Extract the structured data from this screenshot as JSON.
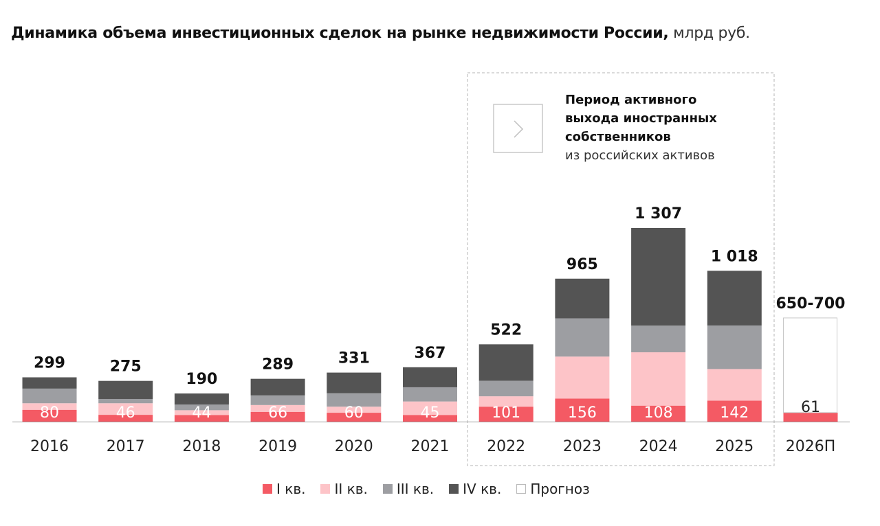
{
  "title": {
    "main": "Динамика объема инвестиционных сделок на рынке недвижимости России,",
    "unit": "млрд руб."
  },
  "annotation": {
    "line1": "Период активного",
    "line2": "выхода иностранных",
    "line3": "собственников",
    "line4": "из российских активов",
    "icon": "chevron-right-icon"
  },
  "colors": {
    "q1": "#f45a64",
    "q2": "#fdc4c8",
    "q3": "#9d9ea2",
    "q4": "#545454",
    "forecast": "#ffffff"
  },
  "chart_data": {
    "type": "bar",
    "stacked": true,
    "title": "Динамика объема инвестиционных сделок на рынке недвижимости России, млрд руб.",
    "categories": [
      "2016",
      "2017",
      "2018",
      "2019",
      "2020",
      "2021",
      "2022",
      "2023",
      "2024",
      "2025",
      "2026П"
    ],
    "series": [
      {
        "name": "I кв.",
        "values": [
          80,
          46,
          44,
          66,
          60,
          45,
          101,
          156,
          108,
          142,
          61
        ]
      },
      {
        "name": "II кв.",
        "values": [
          44,
          78,
          33,
          46,
          41,
          91,
          70,
          283,
          360,
          213,
          0
        ]
      },
      {
        "name": "III кв.",
        "values": [
          99,
          29,
          38,
          65,
          91,
          96,
          105,
          258,
          180,
          294,
          0
        ]
      },
      {
        "name": "IV кв.",
        "values": [
          76,
          122,
          75,
          112,
          139,
          135,
          246,
          268,
          659,
          369,
          0
        ]
      },
      {
        "name": "Прогноз",
        "values": [
          0,
          0,
          0,
          0,
          0,
          0,
          0,
          0,
          0,
          0,
          639
        ]
      }
    ],
    "totals": [
      "299",
      "275",
      "190",
      "289",
      "331",
      "367",
      "522",
      "965",
      "1 307",
      "1 018",
      "650-700"
    ],
    "q1_labels": [
      "80",
      "46",
      "44",
      "66",
      "60",
      "45",
      "101",
      "156",
      "108",
      "142",
      "61"
    ],
    "legend": [
      "I кв.",
      "II кв.",
      "III кв.",
      "IV кв.",
      "Прогноз"
    ],
    "legend_position": "bottom",
    "ylim": [
      0,
      1400
    ],
    "grid": false,
    "highlight_range": [
      "2022",
      "2025"
    ]
  }
}
